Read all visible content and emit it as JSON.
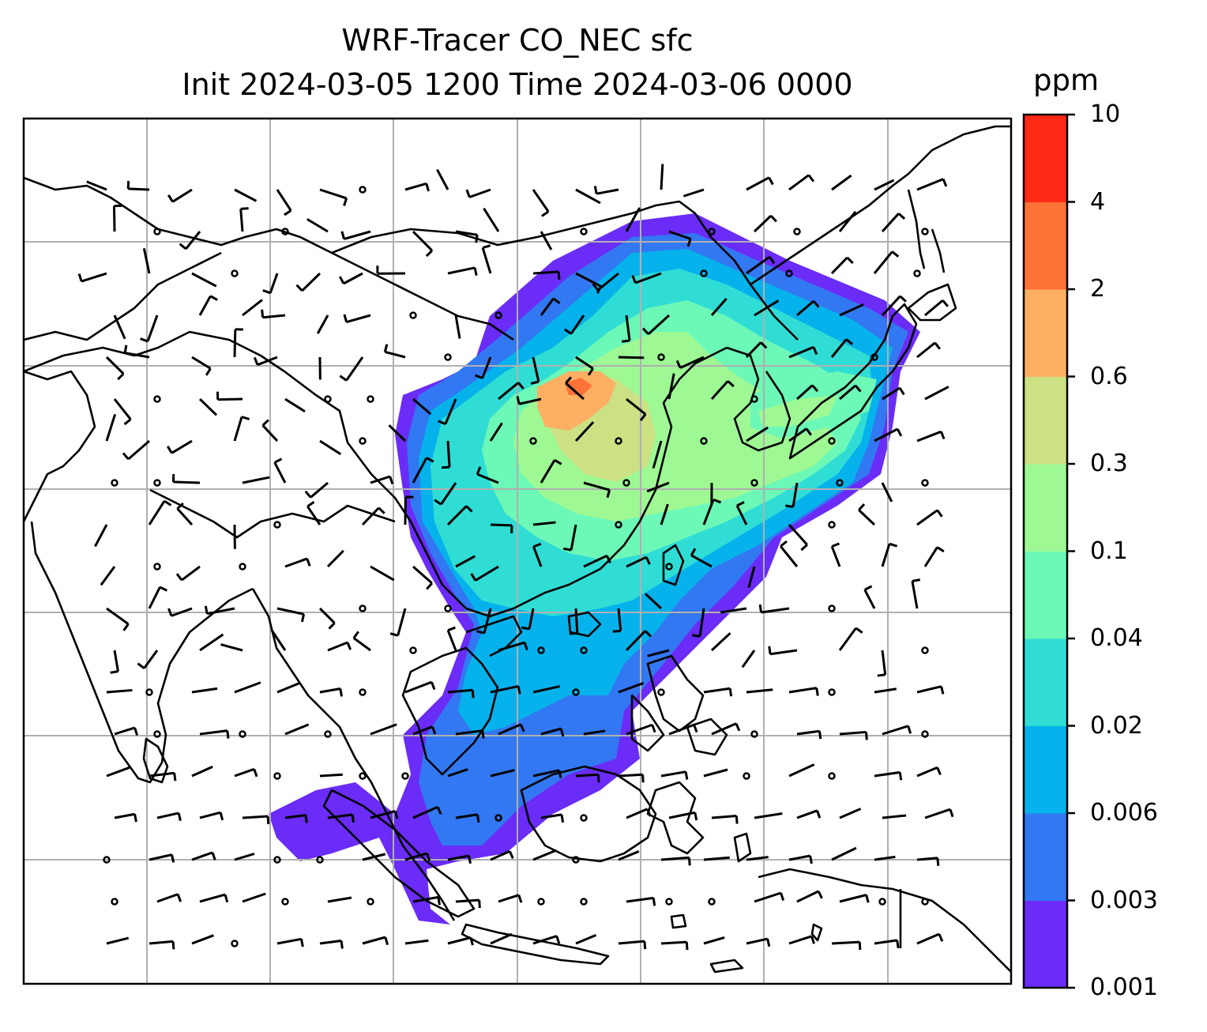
{
  "title": {
    "line1": "WRF-Tracer CO_NEC sfc",
    "line2": "Init 2024-03-05 1200 Time 2024-03-06 0000"
  },
  "colorbar": {
    "unit": "ppm",
    "tick_labels": [
      "0.001",
      "0.003",
      "0.006",
      "0.02",
      "0.04",
      "0.1",
      "0.3",
      "0.6",
      "2",
      "4",
      "10"
    ],
    "colors": [
      "#6a2cf6",
      "#3278f2",
      "#06b2eb",
      "#30ddd5",
      "#6cf8b7",
      "#9ef994",
      "#cce183",
      "#fdaf63",
      "#ff7238",
      "#ff2a16"
    ]
  },
  "map": {
    "field": "CO_NEC surface concentration",
    "overlays": [
      "coastlines",
      "country borders",
      "wind barbs",
      "lat/lon gridlines"
    ]
  }
}
